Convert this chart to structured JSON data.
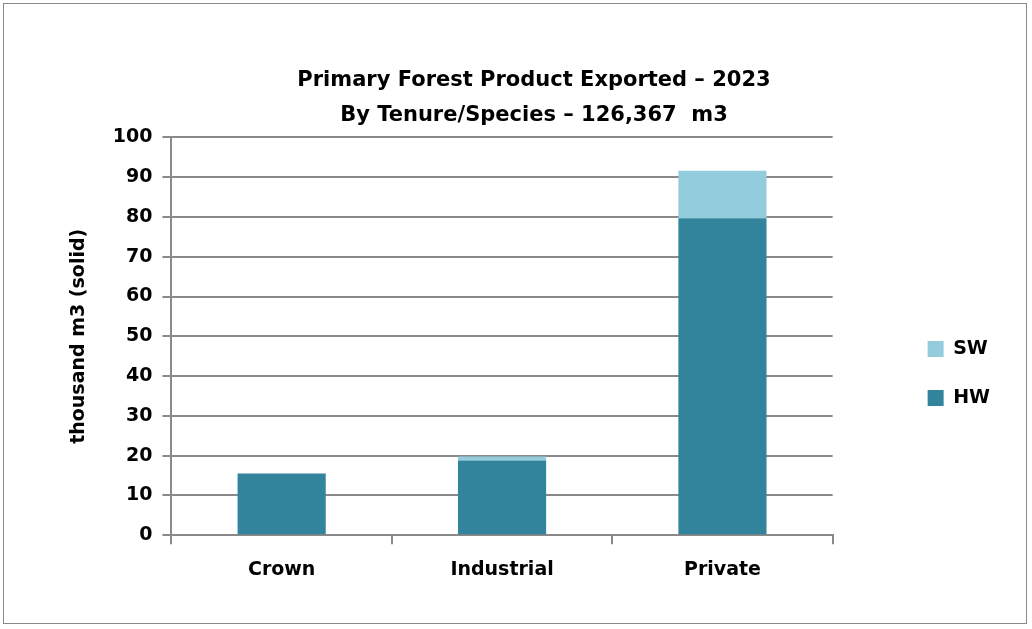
{
  "chart_data": {
    "type": "bar",
    "title": "Primary Forest Product Exported – 2023",
    "subtitle": "By Tenure/Species – 126,367  m3",
    "ylabel": "thousand m3 (solid)",
    "categories": [
      "Crown",
      "Industrial",
      "Private"
    ],
    "series": [
      {
        "name": "HW",
        "color": "#31849b",
        "values": [
          15.5,
          18.8,
          79.7
        ]
      },
      {
        "name": "SW",
        "color": "#93cddd",
        "values": [
          0,
          1.0,
          11.9
        ]
      }
    ],
    "stacked": true,
    "ylim": [
      0,
      100
    ],
    "yticks": [
      0,
      10,
      20,
      30,
      40,
      50,
      60,
      70,
      80,
      90,
      100
    ],
    "grid": "y",
    "legend": "right"
  }
}
